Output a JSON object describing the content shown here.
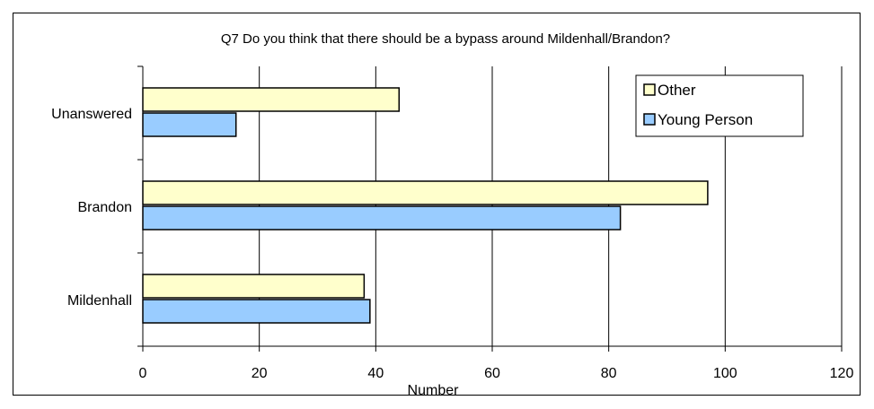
{
  "chart_data": {
    "type": "bar",
    "orientation": "horizontal",
    "title": "Q7 Do you think that there should be a bypass around Mildenhall/Brandon?",
    "xlabel": "Number",
    "ylabel": "",
    "categories": [
      "Unanswered",
      "Brandon",
      "Mildenhall"
    ],
    "series": [
      {
        "name": "Other",
        "values": [
          44,
          97,
          38
        ],
        "color": "#ffffcc"
      },
      {
        "name": "Young Person",
        "values": [
          16,
          82,
          39
        ],
        "color": "#99ccff"
      }
    ],
    "xlim": [
      0,
      120
    ],
    "xticks": [
      0,
      20,
      40,
      60,
      80,
      100,
      120
    ],
    "grid": "vertical",
    "legend": "top-right"
  }
}
